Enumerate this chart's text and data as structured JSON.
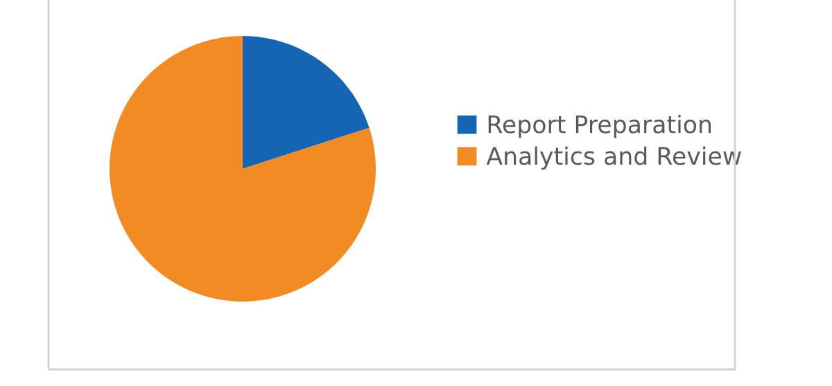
{
  "chart_data": {
    "type": "pie",
    "categories": [
      "Report Preparation",
      "Analytics and Review"
    ],
    "values": [
      20,
      80
    ],
    "colors": [
      "#1565b4",
      "#f28b24"
    ],
    "legend": "right"
  }
}
